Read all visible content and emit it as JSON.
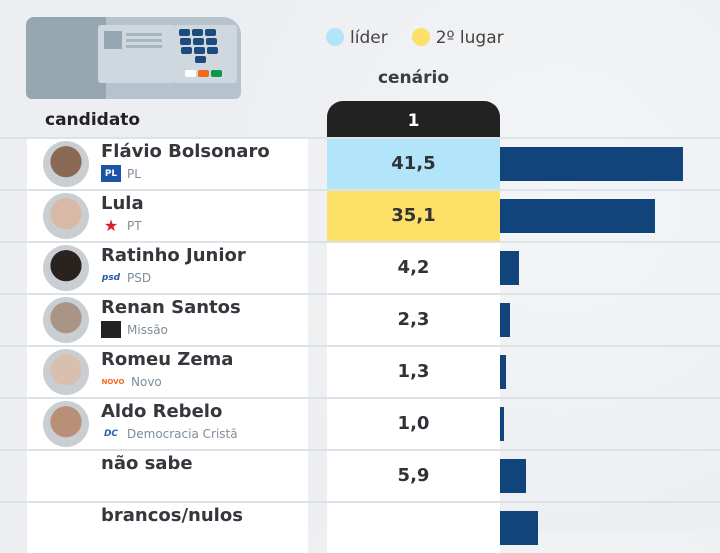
{
  "legend": {
    "leader": "líder",
    "second": "2º lugar",
    "leader_color": "#b3e5fa",
    "second_color": "#fde068"
  },
  "header": {
    "scenario": "cenário",
    "scenario_number": "1",
    "candidate": "candidato"
  },
  "chart_data": {
    "type": "bar",
    "title": "cenário 1",
    "xlabel": "",
    "ylabel": "",
    "categories": [
      "Flávio Bolsonaro",
      "Lula",
      "Ratinho Junior",
      "Renan Santos",
      "Romeu Zema",
      "Aldo Rebelo",
      "não sabe",
      "brancos/nulos"
    ],
    "values": [
      41.5,
      35.1,
      4.2,
      2.3,
      1.3,
      1.0,
      5.9,
      8.6
    ],
    "value_labels": [
      "41,5",
      "35,1",
      "4,2",
      "2,3",
      "1,3",
      "1,0",
      "5,9",
      ""
    ],
    "bar_color": "#12447c"
  },
  "rows": [
    {
      "name": "Flávio Bolsonaro",
      "party": "PL",
      "logo": "PL",
      "highlight": "leader"
    },
    {
      "name": "Lula",
      "party": "PT",
      "logo": "PT",
      "highlight": "second"
    },
    {
      "name": "Ratinho Junior",
      "party": "PSD",
      "logo": "psd"
    },
    {
      "name": "Renan Santos",
      "party": "Missão",
      "logo": "M"
    },
    {
      "name": "Romeu Zema",
      "party": "Novo",
      "logo": "NOVO"
    },
    {
      "name": "Aldo Rebelo",
      "party": "Democracia Cristã",
      "logo": "DC"
    },
    {
      "name": "não sabe"
    },
    {
      "name": "brancos/nulos"
    }
  ]
}
